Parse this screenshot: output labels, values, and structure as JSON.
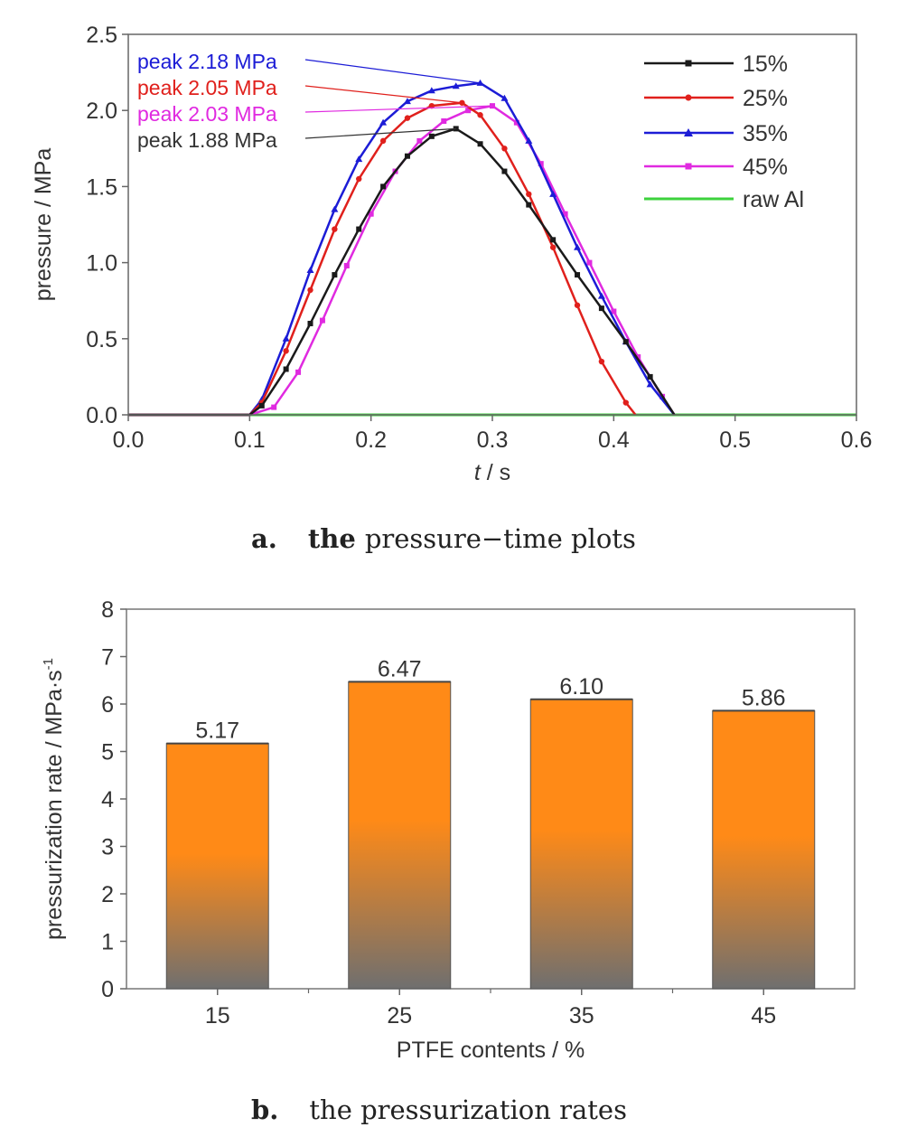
{
  "chart_data": [
    {
      "type": "line",
      "caption_letter": "a.",
      "caption_bold": "the",
      "caption_text": "pressure−time plots",
      "xlabel_italic": "t",
      "xlabel_unit": " / s",
      "ylabel": "pressure / MPa",
      "xlim": [
        0.0,
        0.6
      ],
      "ylim": [
        0.0,
        2.5
      ],
      "x_ticks": [
        "0.0",
        "0.1",
        "0.2",
        "0.3",
        "0.4",
        "0.5",
        "0.6"
      ],
      "y_ticks": [
        "0.0",
        "0.5",
        "1.0",
        "1.5",
        "2.0",
        "2.5"
      ],
      "legend_position": "top-right",
      "series": [
        {
          "name": "15%",
          "color": "#1a1a1a",
          "marker": "square",
          "peak": 1.88,
          "peak_t": 0.27,
          "x": [
            0.0,
            0.1,
            0.11,
            0.13,
            0.15,
            0.17,
            0.19,
            0.21,
            0.23,
            0.25,
            0.27,
            0.29,
            0.31,
            0.33,
            0.35,
            0.37,
            0.39,
            0.41,
            0.43,
            0.45
          ],
          "y": [
            0.0,
            0.0,
            0.06,
            0.3,
            0.6,
            0.92,
            1.22,
            1.5,
            1.7,
            1.83,
            1.88,
            1.78,
            1.6,
            1.38,
            1.15,
            0.92,
            0.7,
            0.48,
            0.25,
            0.0
          ]
        },
        {
          "name": "25%",
          "color": "#e0201c",
          "marker": "circle",
          "peak": 2.05,
          "peak_t": 0.275,
          "x": [
            0.0,
            0.1,
            0.11,
            0.13,
            0.15,
            0.17,
            0.19,
            0.21,
            0.23,
            0.25,
            0.275,
            0.29,
            0.31,
            0.33,
            0.35,
            0.37,
            0.39,
            0.41,
            0.418
          ],
          "y": [
            0.0,
            0.0,
            0.08,
            0.42,
            0.82,
            1.22,
            1.55,
            1.8,
            1.95,
            2.03,
            2.05,
            1.97,
            1.75,
            1.45,
            1.1,
            0.72,
            0.35,
            0.08,
            0.0
          ]
        },
        {
          "name": "35%",
          "color": "#1c1cd6",
          "marker": "triangle",
          "peak": 2.18,
          "peak_t": 0.29,
          "x": [
            0.0,
            0.1,
            0.11,
            0.13,
            0.15,
            0.17,
            0.19,
            0.21,
            0.23,
            0.25,
            0.27,
            0.29,
            0.31,
            0.33,
            0.35,
            0.37,
            0.39,
            0.41,
            0.43,
            0.45
          ],
          "y": [
            0.0,
            0.0,
            0.1,
            0.5,
            0.95,
            1.35,
            1.68,
            1.92,
            2.06,
            2.13,
            2.16,
            2.18,
            2.08,
            1.8,
            1.45,
            1.1,
            0.78,
            0.48,
            0.2,
            0.0
          ]
        },
        {
          "name": "45%",
          "color": "#e02ae0",
          "marker": "square",
          "peak": 2.03,
          "peak_t": 0.3,
          "x": [
            0.0,
            0.1,
            0.12,
            0.14,
            0.16,
            0.18,
            0.2,
            0.22,
            0.24,
            0.26,
            0.28,
            0.3,
            0.32,
            0.34,
            0.36,
            0.38,
            0.4,
            0.42,
            0.44,
            0.45
          ],
          "y": [
            0.0,
            0.0,
            0.05,
            0.28,
            0.62,
            0.98,
            1.32,
            1.6,
            1.8,
            1.93,
            2.0,
            2.03,
            1.92,
            1.65,
            1.32,
            1.0,
            0.68,
            0.38,
            0.12,
            0.0
          ]
        },
        {
          "name": "raw Al",
          "color": "#3cd23c",
          "marker": "none",
          "x": [
            0.0,
            0.6
          ],
          "y": [
            0.0,
            0.0
          ]
        }
      ],
      "annotations": [
        {
          "text": "peak 2.18 MPa",
          "color": "#1c1cd6",
          "target": [
            0.29,
            2.18
          ]
        },
        {
          "text": "peak 2.05 MPa",
          "color": "#e0201c",
          "target": [
            0.275,
            2.05
          ]
        },
        {
          "text": "peak 2.03 MPa",
          "color": "#e02ae0",
          "target": [
            0.3,
            2.03
          ]
        },
        {
          "text": "peak 1.88 MPa",
          "color": "#333333",
          "target": [
            0.27,
            1.88
          ]
        }
      ]
    },
    {
      "type": "bar",
      "caption_letter": "b.",
      "caption_text": "the pressurization rates",
      "xlabel": "PTFE contents / %",
      "ylabel": "pressurization rate / MPa·s",
      "ylabel_sup": "-1",
      "ylim": [
        0,
        8
      ],
      "y_ticks": [
        "0",
        "1",
        "2",
        "3",
        "4",
        "5",
        "6",
        "7",
        "8"
      ],
      "categories": [
        "15",
        "25",
        "35",
        "45"
      ],
      "values": [
        5.17,
        6.47,
        6.1,
        5.86
      ],
      "value_labels": [
        "5.17",
        "6.47",
        "6.10",
        "5.86"
      ],
      "bar_color_top": "#ff8a17",
      "bar_color_bottom": "#6f6f6f"
    }
  ]
}
